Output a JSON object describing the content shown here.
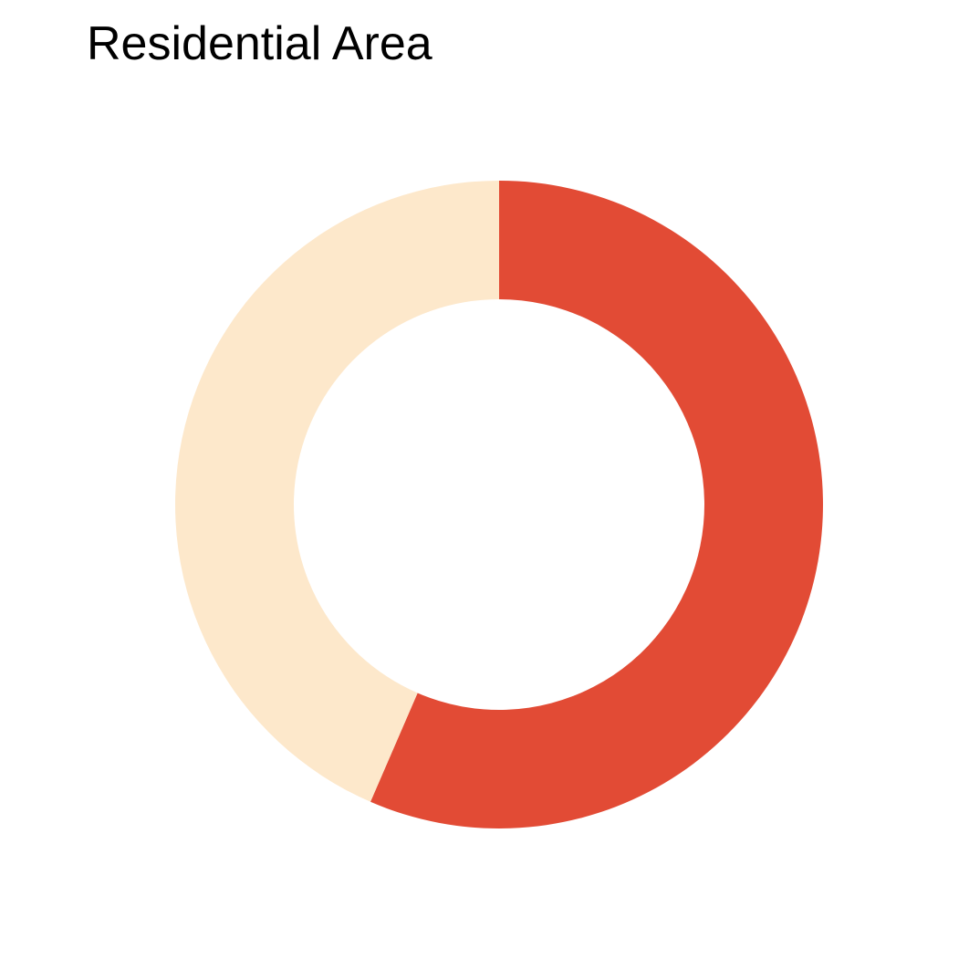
{
  "chart_data": {
    "type": "pie",
    "title": "Residential Area",
    "donut": true,
    "start_angle": "top",
    "direction": "clockwise",
    "slices": [
      {
        "value": 0.565,
        "color": "#e24b35"
      },
      {
        "value": 0.435,
        "color": "#fde8cb"
      }
    ],
    "legend": "none"
  }
}
